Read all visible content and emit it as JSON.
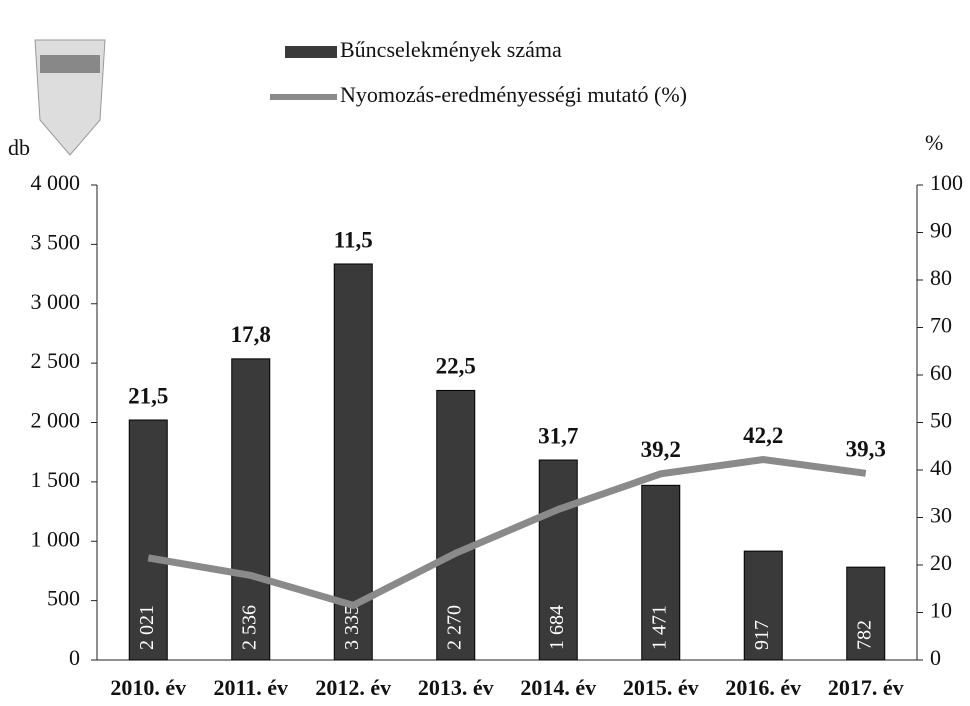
{
  "chart_data": {
    "type": "bar",
    "categories": [
      "2010. év",
      "2011. év",
      "2012. év",
      "2013. év",
      "2014. év",
      "2015. év",
      "2016. év",
      "2017. év"
    ],
    "series": [
      {
        "name": "Bűncselekmények száma",
        "type": "bar",
        "color": "#3a3a3a",
        "values": [
          2021,
          2536,
          3335,
          2270,
          1684,
          1471,
          917,
          782
        ],
        "value_labels": [
          "2 021",
          "2 536",
          "3 335",
          "2 270",
          "1 684",
          "1 471",
          "917",
          "782"
        ]
      },
      {
        "name": "Nyomozás-eredményességi mutató (%)",
        "type": "line",
        "axis": "y2",
        "color": "#8a8a8a",
        "values": [
          21.5,
          17.8,
          11.5,
          22.5,
          31.7,
          39.2,
          42.2,
          39.3
        ],
        "value_labels": [
          "21,5",
          "17,8",
          "11,5",
          "22,5",
          "31,7",
          "39,2",
          "42,2",
          "39,3"
        ]
      }
    ],
    "y_label": "db",
    "y2_label": "%",
    "ylim": [
      0,
      4000
    ],
    "yticks": [
      0,
      500,
      {
        "value": 1000,
        "label": "1 000"
      },
      {
        "value": 1500,
        "label": "1 500"
      },
      {
        "value": 2000,
        "label": "2 000"
      },
      {
        "value": 2500,
        "label": "2 500"
      },
      {
        "value": 3000,
        "label": "3 000"
      },
      {
        "value": 3500,
        "label": "3 500"
      },
      {
        "value": 4000,
        "label": "4 000"
      }
    ],
    "y2lim": [
      0,
      100
    ],
    "y2ticks": [
      0,
      10,
      20,
      30,
      40,
      50,
      60,
      70,
      80,
      90,
      100
    ],
    "grid": false,
    "legend": "top"
  }
}
